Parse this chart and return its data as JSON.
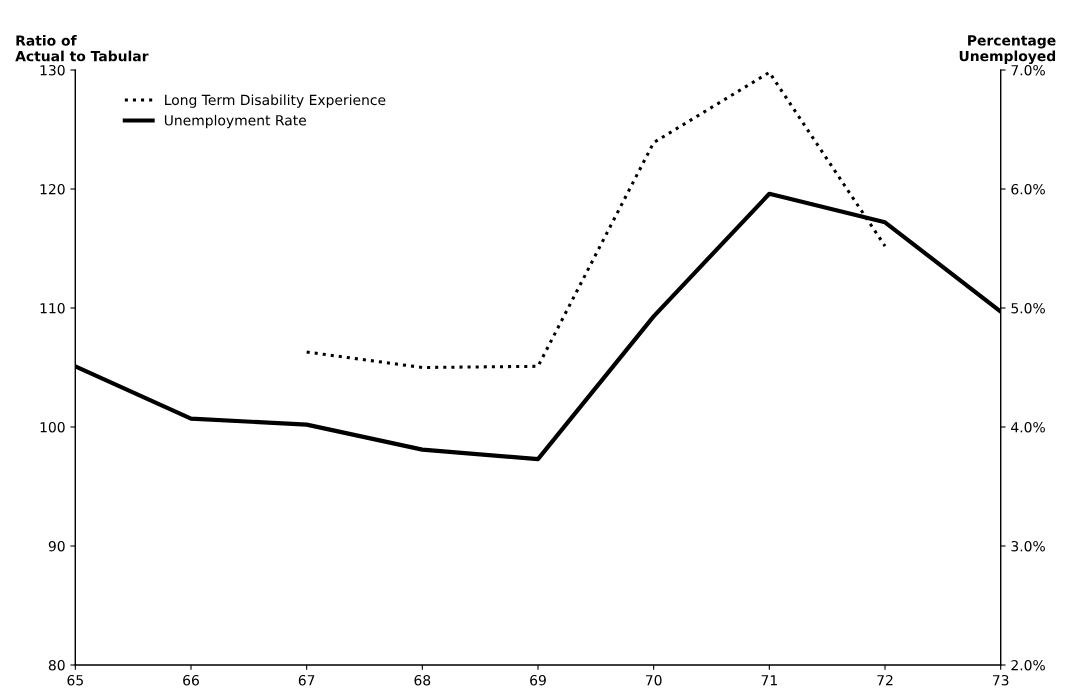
{
  "chart_data": {
    "type": "line",
    "ylabel": "Ratio of\nActual to Tabular",
    "y2label": "Percentage\nUnemployed",
    "x": [
      65,
      66,
      67,
      68,
      69,
      70,
      71,
      72,
      73
    ],
    "xlim": [
      65,
      73
    ],
    "xticks": [
      65,
      66,
      67,
      68,
      69,
      70,
      71,
      72,
      73
    ],
    "ylim": [
      80,
      130
    ],
    "yticks": [
      80,
      90,
      100,
      110,
      120,
      130
    ],
    "y2lim": [
      2,
      7
    ],
    "y2ticks": [
      {
        "value": 2,
        "label": "2.0%"
      },
      {
        "value": 3,
        "label": "3.0%"
      },
      {
        "value": 4,
        "label": "4.0%"
      },
      {
        "value": 5,
        "label": "5.0%"
      },
      {
        "value": 6,
        "label": "6.0%"
      },
      {
        "value": 7,
        "label": "7.0%"
      }
    ],
    "legend": "top left",
    "grid": false,
    "marker": "none",
    "series": [
      {
        "name": "Long Term Disability Experience",
        "color": "#000000",
        "line_style": "dotted",
        "values": [
          null,
          null,
          106.3,
          105.0,
          105.1,
          123.9,
          129.8,
          115.2,
          null
        ]
      },
      {
        "name": "Unemployment Rate",
        "color": "#000000",
        "line_style": "solid",
        "axis": "y2",
        "values": [
          4.51,
          4.07,
          4.02,
          3.81,
          3.73,
          4.93,
          5.96,
          5.72,
          4.97
        ]
      }
    ]
  }
}
